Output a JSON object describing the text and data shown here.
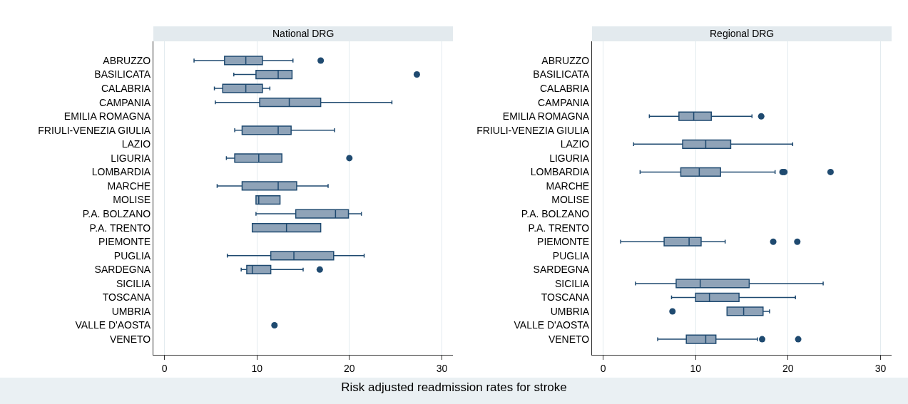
{
  "chart_data": [
    {
      "type": "box",
      "title": "National DRG",
      "xlabel": "Risk adjusted readmission rates for stroke",
      "orientation": "horizontal",
      "color": "#8fa3b8",
      "grid": "x",
      "legend": false,
      "xlim": [
        -1.2,
        31.2
      ],
      "xticks": [
        0,
        10,
        20,
        30
      ],
      "categories": [
        "ABRUZZO",
        "BASILICATA",
        "CALABRIA",
        "CAMPANIA",
        "EMILIA ROMAGNA",
        "FRIULI-VENEZIA GIULIA",
        "LAZIO",
        "LIGURIA",
        "LOMBARDIA",
        "MARCHE",
        "MOLISE",
        "P.A. BOLZANO",
        "P.A. TRENTO",
        "PIEMONTE",
        "PUGLIA",
        "SARDEGNA",
        "SICILIA",
        "TOSCANA",
        "UMBRIA",
        "VALLE D'AOSTA",
        "VENETO"
      ],
      "boxes": [
        {
          "low": 3.2,
          "q1": 6.5,
          "median": 8.8,
          "q3": 10.6,
          "high": 13.9,
          "outliers": [
            16.9
          ]
        },
        {
          "low": 7.5,
          "q1": 9.9,
          "median": 12.3,
          "q3": 13.8,
          "high": 13.8,
          "outliers": [
            27.3
          ]
        },
        {
          "low": 5.4,
          "q1": 6.3,
          "median": 8.8,
          "q3": 10.6,
          "high": 11.4
        },
        {
          "low": 5.5,
          "q1": 10.3,
          "median": 13.5,
          "q3": 16.9,
          "high": 24.6
        },
        null,
        {
          "low": 7.6,
          "q1": 8.4,
          "median": 12.3,
          "q3": 13.7,
          "high": 18.4
        },
        null,
        {
          "low": 6.7,
          "q1": 7.6,
          "median": 10.2,
          "q3": 12.7,
          "high": 12.7,
          "outliers": [
            20
          ]
        },
        null,
        {
          "low": 5.7,
          "q1": 8.4,
          "median": 12.3,
          "q3": 14.3,
          "high": 17.7
        },
        {
          "low": 9.9,
          "q1": 9.9,
          "median": 10.2,
          "q3": 12.5,
          "high": 12.5
        },
        {
          "low": 9.9,
          "q1": 14.2,
          "median": 18.5,
          "q3": 19.9,
          "high": 21.3
        },
        {
          "low": 9.5,
          "q1": 9.5,
          "median": 13.2,
          "q3": 16.9,
          "high": 16.9
        },
        null,
        {
          "low": 6.8,
          "q1": 11.5,
          "median": 14,
          "q3": 18.3,
          "high": 21.6
        },
        {
          "low": 8.3,
          "q1": 8.9,
          "median": 9.5,
          "q3": 11.5,
          "high": 15,
          "outliers": [
            16.8
          ]
        },
        null,
        null,
        null,
        {
          "low": 11.9,
          "q1": 11.9,
          "median": 11.9,
          "q3": 11.9,
          "high": 11.9,
          "outliers": [
            11.9
          ]
        },
        null
      ]
    },
    {
      "type": "box",
      "title": "Regional DRG",
      "orientation": "horizontal",
      "color": "#8fa3b8",
      "grid": "x",
      "legend": false,
      "xlim": [
        -1.2,
        31.2
      ],
      "xticks": [
        0,
        10,
        20,
        30
      ],
      "categories": [
        "ABRUZZO",
        "BASILICATA",
        "CALABRIA",
        "CAMPANIA",
        "EMILIA ROMAGNA",
        "FRIULI-VENEZIA GIULIA",
        "LAZIO",
        "LIGURIA",
        "LOMBARDIA",
        "MARCHE",
        "MOLISE",
        "P.A. BOLZANO",
        "P.A. TRENTO",
        "PIEMONTE",
        "PUGLIA",
        "SARDEGNA",
        "SICILIA",
        "TOSCANA",
        "UMBRIA",
        "VALLE D'AOSTA",
        "VENETO"
      ],
      "boxes": [
        null,
        null,
        null,
        null,
        {
          "low": 5,
          "q1": 8.2,
          "median": 9.8,
          "q3": 11.7,
          "high": 16.1,
          "outliers": [
            17.1
          ]
        },
        null,
        {
          "low": 3.3,
          "q1": 8.6,
          "median": 11.1,
          "q3": 13.8,
          "high": 20.5
        },
        null,
        {
          "low": 4,
          "q1": 8.4,
          "median": 10.4,
          "q3": 12.7,
          "high": 18.6,
          "outliers": [
            19.4,
            19.6,
            24.6
          ]
        },
        null,
        null,
        null,
        null,
        {
          "low": 1.9,
          "q1": 6.6,
          "median": 9.3,
          "q3": 10.6,
          "high": 13.2,
          "outliers": [
            18.4,
            21
          ]
        },
        null,
        null,
        {
          "low": 3.5,
          "q1": 7.9,
          "median": 10.5,
          "q3": 15.8,
          "high": 23.8
        },
        {
          "low": 7.4,
          "q1": 10,
          "median": 11.5,
          "q3": 14.7,
          "high": 20.8
        },
        {
          "low": 13.4,
          "q1": 13.4,
          "median": 15.2,
          "q3": 17.3,
          "high": 18,
          "outliers": [
            7.5
          ]
        },
        null,
        {
          "low": 5.9,
          "q1": 9,
          "median": 11.1,
          "q3": 12.2,
          "high": 16.7,
          "outliers": [
            17.2,
            21.1
          ]
        }
      ]
    }
  ]
}
